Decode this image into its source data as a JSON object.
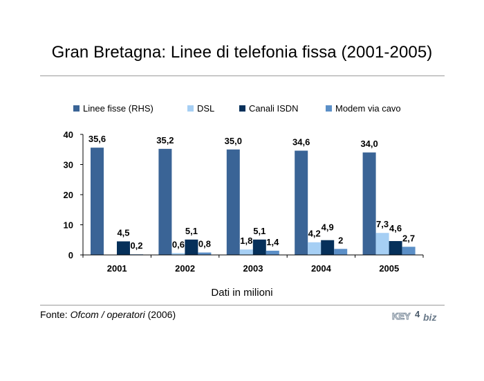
{
  "title": "Gran Bretagna: Linee di telefonia fissa (2001-2005)",
  "subtitle": "Dati in milioni",
  "source": {
    "prefix": "Fonte: ",
    "name": "Ofcom / operatori",
    "suffix": " (2006)"
  },
  "logo": {
    "text_left": "KEY",
    "text_number": "4",
    "text_right": "biz"
  },
  "chart_data": {
    "type": "bar",
    "categories": [
      "2001",
      "2002",
      "2003",
      "2004",
      "2005"
    ],
    "ylim": [
      0,
      40
    ],
    "yticks": [
      0,
      10,
      20,
      30,
      40
    ],
    "grid": false,
    "legend_position": "top",
    "series": [
      {
        "name": "Linee fisse (RHS)",
        "color": "#3a6496",
        "values": [
          35.6,
          35.2,
          35.0,
          34.6,
          34.0
        ],
        "labels": [
          "35,6",
          "35,2",
          "35,0",
          "34,6",
          "34,0"
        ]
      },
      {
        "name": "DSL",
        "color": "#a6cff4",
        "values": [
          null,
          0.6,
          1.8,
          4.2,
          7.3
        ],
        "labels": [
          "",
          "0,6",
          "1,8",
          "4,2",
          "7,3"
        ]
      },
      {
        "name": "Canali ISDN",
        "color": "#06305a",
        "values": [
          4.5,
          5.1,
          5.1,
          4.9,
          4.6
        ],
        "labels": [
          "4,5",
          "5,1",
          "5,1",
          "4,9",
          "4,6"
        ]
      },
      {
        "name": "Modem via cavo",
        "color": "#5b8fc7",
        "values": [
          0.2,
          0.8,
          1.4,
          2.0,
          2.7
        ],
        "labels": [
          "0,2",
          "0,8",
          "1,4",
          "2",
          "2,7"
        ]
      }
    ]
  }
}
